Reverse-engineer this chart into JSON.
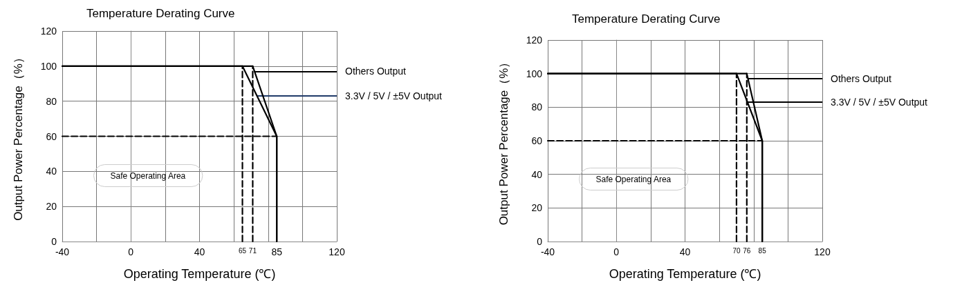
{
  "chart_data": [
    {
      "type": "line",
      "title": "Temperature Derating Curve",
      "xlabel": "Operating Temperature (℃)",
      "ylabel": "Output Power Percentage（%）",
      "xlim": [
        -40,
        120
      ],
      "xticks": [
        -40,
        {
          "value": -20,
          "label": null
        },
        0,
        {
          "value": 20,
          "label": null
        },
        40,
        {
          "value": 60,
          "label": null
        },
        65,
        71,
        {
          "value": 80,
          "label": null
        },
        85,
        {
          "value": 100,
          "label": null
        },
        120
      ],
      "ylim": [
        0,
        120
      ],
      "yticks": [
        0,
        20,
        40,
        60,
        80,
        100,
        120
      ],
      "grid": true,
      "marker": "none",
      "line_style": "solid",
      "series": [
        {
          "name": "Others Output",
          "color": "#000000",
          "x": [
            -40,
            71,
            85,
            85
          ],
          "values": [
            100,
            100,
            60,
            0
          ]
        },
        {
          "name": "3.3V / 5V / ±5V Output",
          "color": "#000000",
          "x": [
            -40,
            65,
            85,
            85
          ],
          "values": [
            100,
            100,
            60,
            0
          ]
        },
        {
          "color": "#000000",
          "line_style": "dashed",
          "x": [
            65,
            65
          ],
          "values": [
            0,
            100
          ]
        },
        {
          "color": "#000000",
          "line_style": "dashed",
          "x": [
            71,
            71
          ],
          "values": [
            0,
            100
          ]
        },
        {
          "color": "#000000",
          "line_style": "dashed",
          "x": [
            -40,
            85
          ],
          "values": [
            60,
            60
          ]
        }
      ],
      "annotations": [
        "Safe Operating Area"
      ]
    },
    {
      "type": "line",
      "title": "Temperature Derating Curve",
      "xlabel": "Operating Temperature (℃)",
      "ylabel": "Output Power Percentage（%）",
      "xlim": [
        -40,
        120
      ],
      "xticks": [
        -40,
        {
          "value": -20,
          "label": null
        },
        0,
        {
          "value": 20,
          "label": null
        },
        40,
        {
          "value": 60,
          "label": null
        },
        70,
        76,
        {
          "value": 80,
          "label": null
        },
        85,
        {
          "value": 100,
          "label": null
        },
        120
      ],
      "ylim": [
        0,
        120
      ],
      "yticks": [
        0,
        20,
        40,
        60,
        80,
        100,
        120
      ],
      "grid": true,
      "marker": "none",
      "line_style": "solid",
      "series": [
        {
          "name": "Others Output",
          "color": "#000000",
          "x": [
            -40,
            76,
            85,
            85
          ],
          "values": [
            100,
            100,
            60,
            0
          ]
        },
        {
          "name": "3.3V / 5V / ±5V Output",
          "color": "#000000",
          "x": [
            -40,
            70,
            85,
            85
          ],
          "values": [
            100,
            100,
            60,
            0
          ]
        },
        {
          "color": "#000000",
          "line_style": "dashed",
          "x": [
            70,
            70
          ],
          "values": [
            0,
            100
          ]
        },
        {
          "color": "#000000",
          "line_style": "dashed",
          "x": [
            76,
            76
          ],
          "values": [
            0,
            100
          ]
        },
        {
          "color": "#000000",
          "line_style": "dashed",
          "x": [
            -40,
            85
          ],
          "values": [
            60,
            60
          ]
        }
      ],
      "annotations": [
        "Safe Operating Area"
      ]
    }
  ]
}
